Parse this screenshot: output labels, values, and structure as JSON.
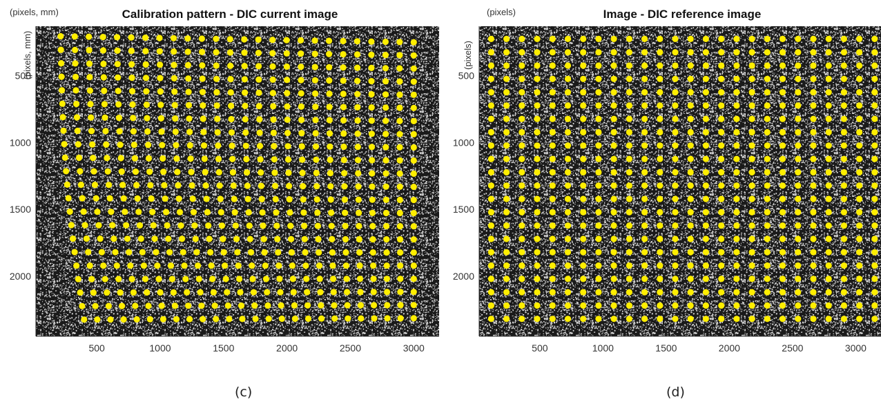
{
  "chart_data": [
    {
      "type": "scatter",
      "title": "Calibration pattern - DIC current image",
      "corner_label": "(pixels, mm)",
      "ylabel": "(pixels, mm)",
      "xlabel": "",
      "xlim": [
        20,
        3200
      ],
      "ylim": [
        2450,
        130
      ],
      "y_reversed": true,
      "xticks": [
        500,
        1000,
        1500,
        2000,
        2500,
        3000
      ],
      "yticks": [
        500,
        1000,
        1500,
        2000
      ],
      "xtick_labels": [
        "500",
        "1000",
        "1500",
        "2000",
        "2500",
        "3000"
      ],
      "ytick_labels": [
        "500",
        "1000",
        "1500",
        "2000"
      ],
      "background": "random black-and-white speckle pattern image",
      "marker_color": "#ffee00",
      "grid": {
        "rows": 22,
        "cols": 26,
        "corner_top_left": [
          215,
          205
        ],
        "corner_top_right": [
          3000,
          250
        ],
        "corner_bottom_left": [
          400,
          2325
        ],
        "corner_bottom_right": [
          3000,
          2315
        ],
        "bow": 0.05
      },
      "grid_lines": false,
      "legend": false
    },
    {
      "type": "scatter",
      "title": "Image - DIC reference image",
      "corner_label": "(pixels)",
      "ylabel": "(pixels)",
      "xlabel": "",
      "xlim": [
        20,
        3200
      ],
      "ylim": [
        2450,
        130
      ],
      "y_reversed": true,
      "xticks": [
        500,
        1000,
        1500,
        2000,
        2500,
        3000
      ],
      "yticks": [
        500,
        1000,
        1500,
        2000
      ],
      "xtick_labels": [
        "500",
        "1000",
        "1500",
        "2000",
        "2500",
        "3000"
      ],
      "ytick_labels": [
        "500",
        "1000",
        "1500",
        "2000"
      ],
      "background": "random black-and-white speckle pattern image",
      "marker_color": "#ffee00",
      "grid": {
        "rows": 22,
        "cols": 26,
        "corner_top_left": [
          115,
          225
        ],
        "corner_top_right": [
          3150,
          225
        ],
        "corner_bottom_left": [
          115,
          2320
        ],
        "corner_bottom_right": [
          3150,
          2320
        ],
        "bow": 0
      },
      "grid_lines": false,
      "legend": false
    }
  ],
  "captions": [
    "(c)",
    "(d)"
  ]
}
